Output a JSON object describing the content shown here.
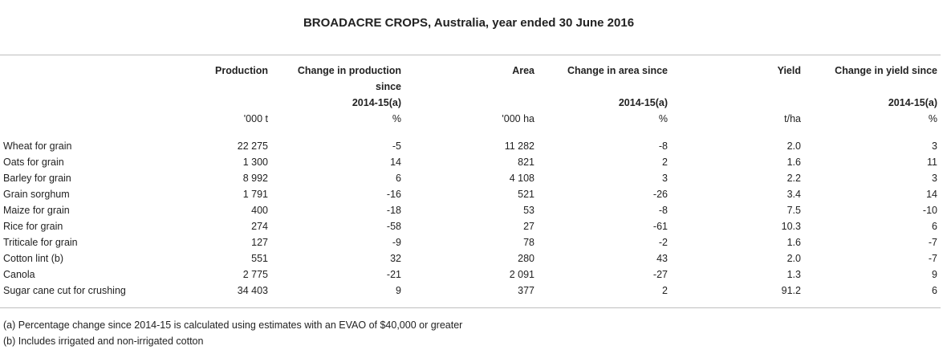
{
  "title": "BROADACRE CROPS, Australia, year ended 30 June 2016",
  "headers": {
    "production": "Production",
    "change_production_1": "Change in production",
    "change_production_2": "since",
    "change_production_3": "2014-15(a)",
    "area": "Area",
    "change_area_1": "Change in area since",
    "change_area_2": "2014-15(a)",
    "yield": "Yield",
    "change_yield_1": "Change in yield since",
    "change_yield_2": "2014-15(a)"
  },
  "units": {
    "production": "'000 t",
    "change_production": "%",
    "area": "'000 ha",
    "change_area": "%",
    "yield": "t/ha",
    "change_yield": "%"
  },
  "rows": [
    {
      "crop": "Wheat for grain",
      "production": "22 275",
      "change_production": "-5",
      "area": "11 282",
      "change_area": "-8",
      "yield": "2.0",
      "change_yield": "3"
    },
    {
      "crop": "Oats for grain",
      "production": "1 300",
      "change_production": "14",
      "area": "821",
      "change_area": "2",
      "yield": "1.6",
      "change_yield": "11"
    },
    {
      "crop": "Barley for grain",
      "production": "8 992",
      "change_production": "6",
      "area": "4 108",
      "change_area": "3",
      "yield": "2.2",
      "change_yield": "3"
    },
    {
      "crop": "Grain sorghum",
      "production": "1 791",
      "change_production": "-16",
      "area": "521",
      "change_area": "-26",
      "yield": "3.4",
      "change_yield": "14"
    },
    {
      "crop": "Maize for grain",
      "production": "400",
      "change_production": "-18",
      "area": "53",
      "change_area": "-8",
      "yield": "7.5",
      "change_yield": "-10"
    },
    {
      "crop": "Rice for grain",
      "production": "274",
      "change_production": "-58",
      "area": "27",
      "change_area": "-61",
      "yield": "10.3",
      "change_yield": "6"
    },
    {
      "crop": "Triticale for grain",
      "production": "127",
      "change_production": "-9",
      "area": "78",
      "change_area": "-2",
      "yield": "1.6",
      "change_yield": "-7"
    },
    {
      "crop": "Cotton lint (b)",
      "production": "551",
      "change_production": "32",
      "area": "280",
      "change_area": "43",
      "yield": "2.0",
      "change_yield": "-7"
    },
    {
      "crop": "Canola",
      "production": "2 775",
      "change_production": "-21",
      "area": "2 091",
      "change_area": "-27",
      "yield": "1.3",
      "change_yield": "9"
    },
    {
      "crop": "Sugar cane cut for crushing",
      "production": "34 403",
      "change_production": "9",
      "area": "377",
      "change_area": "2",
      "yield": "91.2",
      "change_yield": "6"
    }
  ],
  "notes": [
    "(a) Percentage change since 2014-15 is calculated using estimates with an EVAO of $40,000 or greater",
    "(b) Includes irrigated and non-irrigated cotton"
  ]
}
